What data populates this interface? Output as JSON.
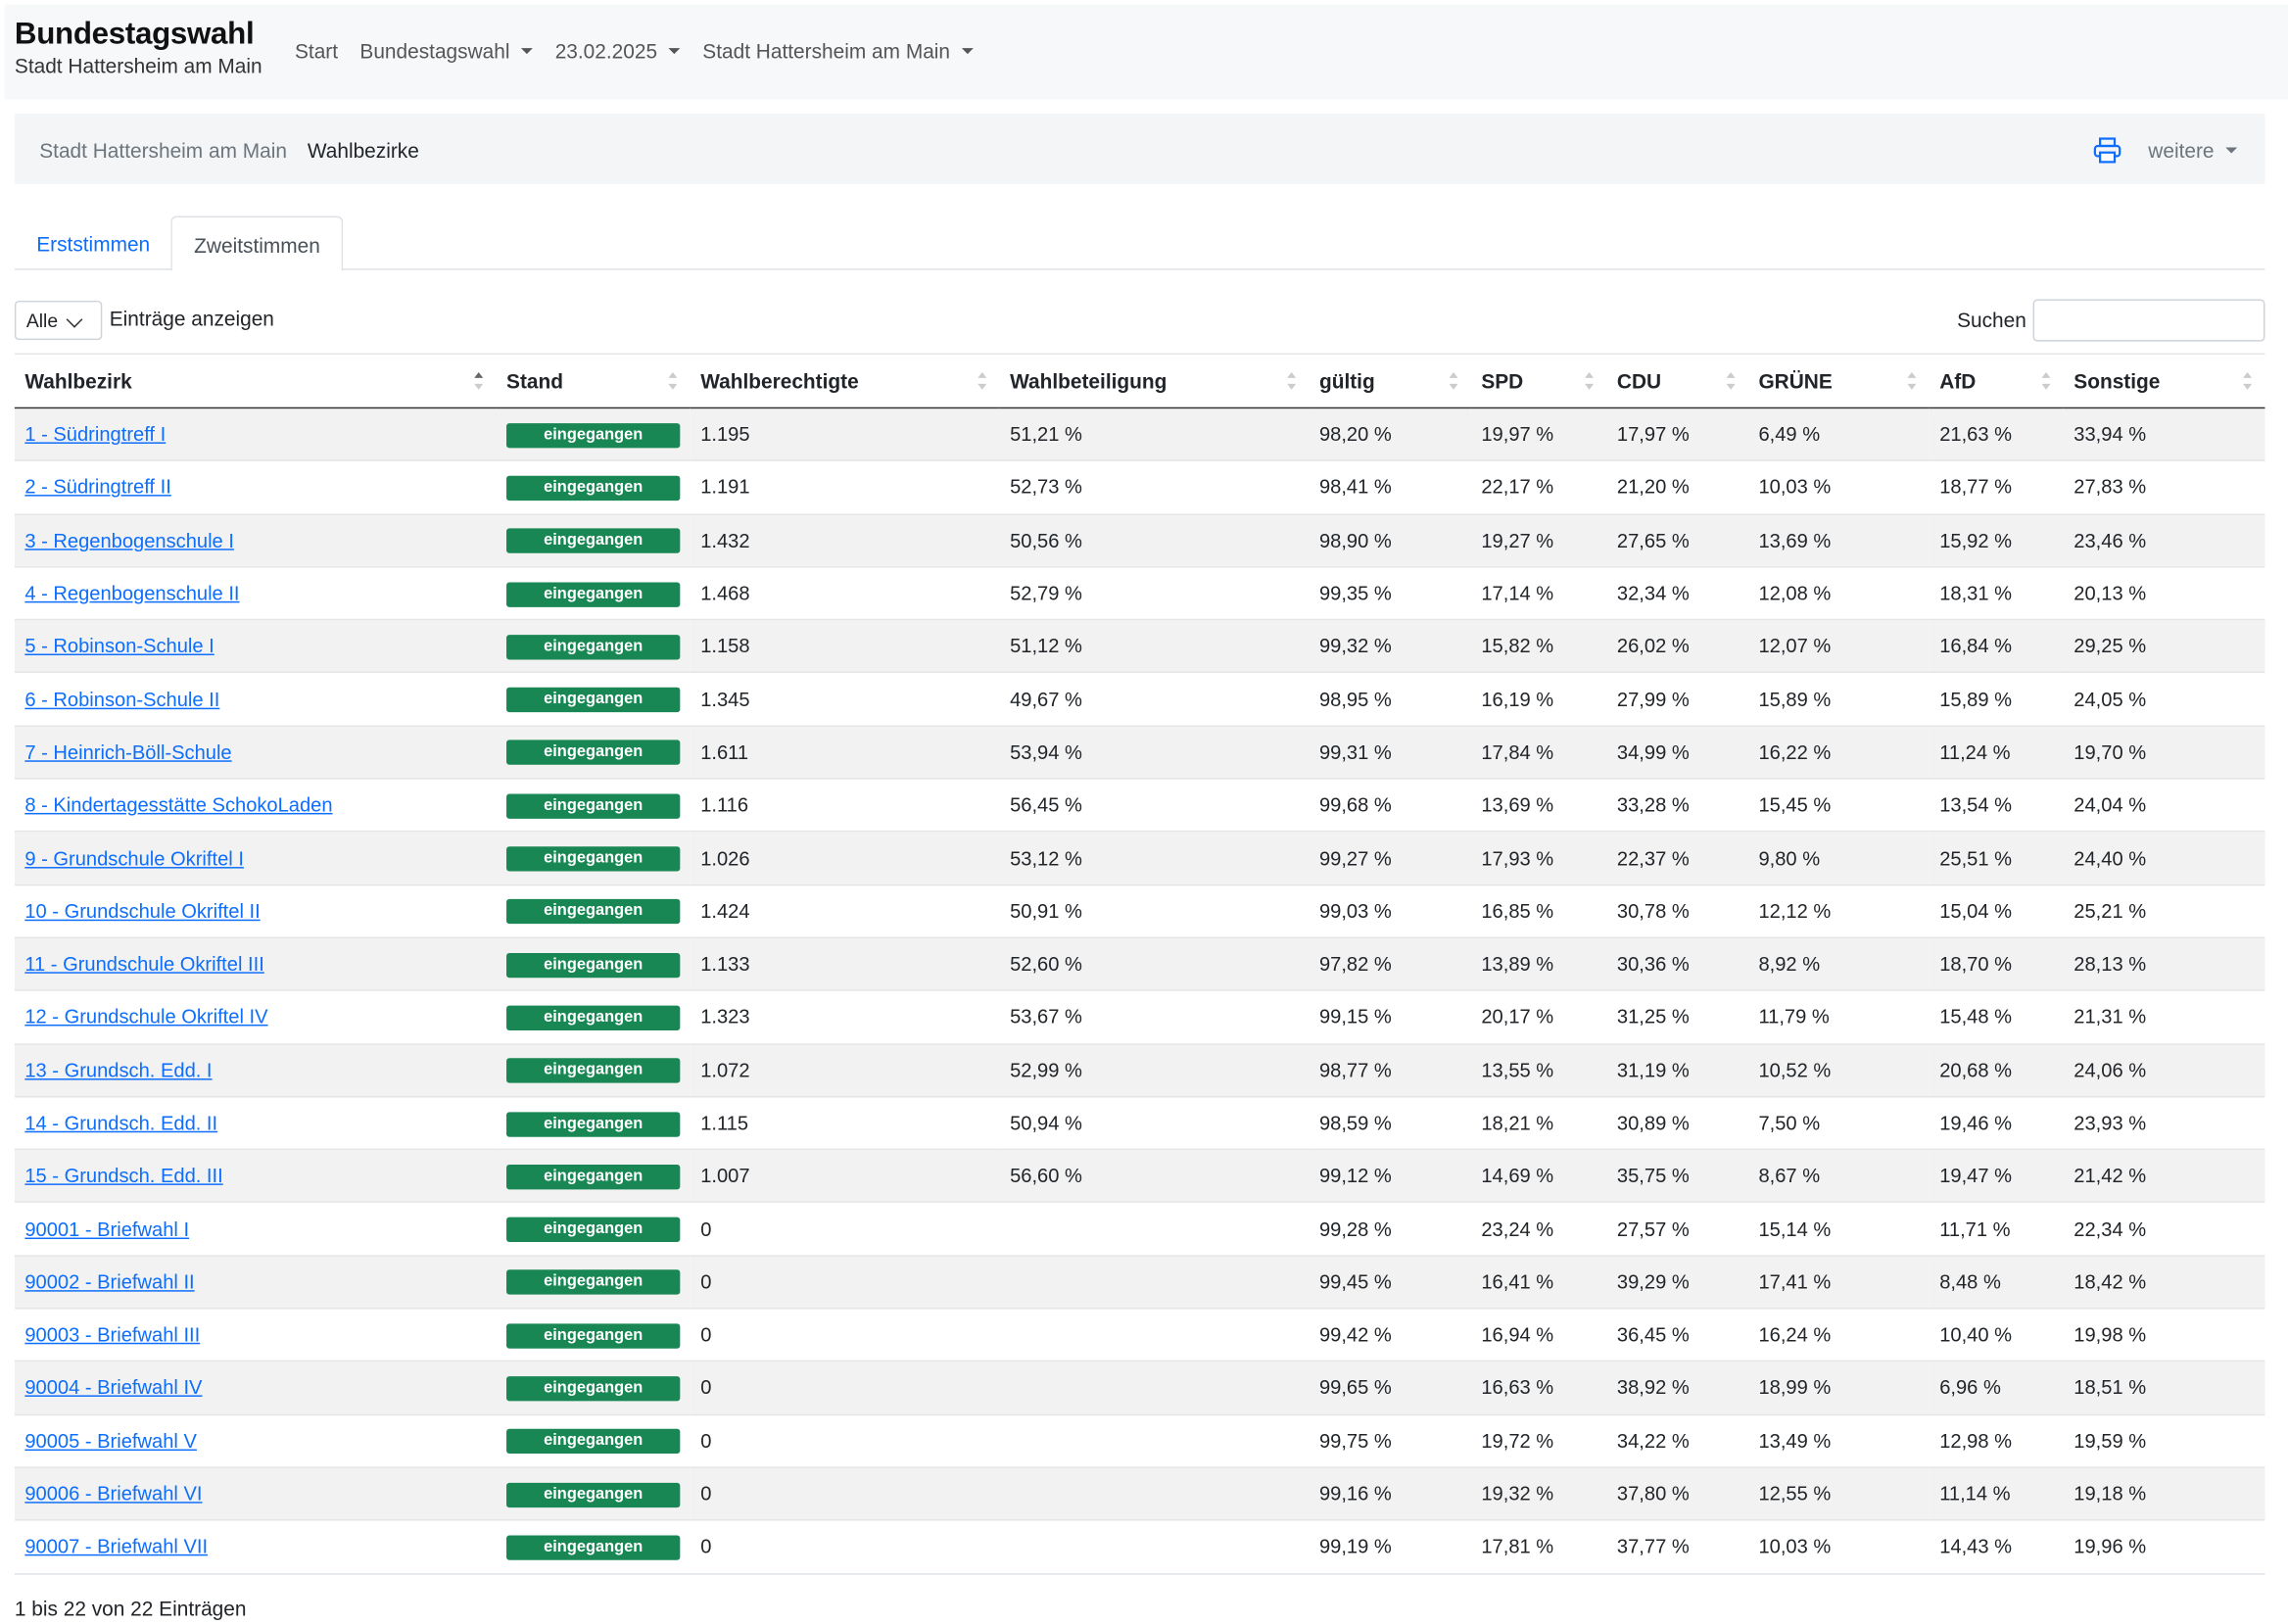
{
  "header": {
    "title": "Bundestagswahl",
    "subtitle": "Stadt Hattersheim am Main",
    "nav": [
      "Start",
      "Bundestagswahl",
      "23.02.2025",
      "Stadt Hattersheim am Main"
    ]
  },
  "breadcrumb": {
    "items": [
      "Stadt Hattersheim am Main",
      "Wahlbezirke"
    ],
    "more_label": "weitere",
    "print_icon": "printer-icon"
  },
  "tabs": [
    "Erststimmen",
    "Zweitstimmen"
  ],
  "active_tab": "Zweitstimmen",
  "controls": {
    "length_value": "Alle",
    "length_label": "Einträge anzeigen",
    "search_label": "Suchen",
    "search_value": ""
  },
  "table": {
    "columns": [
      "Wahlbezirk",
      "Stand",
      "Wahlberechtigte",
      "Wahlbeteiligung",
      "gültig",
      "SPD",
      "CDU",
      "GRÜNE",
      "AfD",
      "Sonstige"
    ],
    "status_color": "#198754",
    "rows": [
      [
        "1 - Südringtreff I",
        "eingegangen",
        "1.195",
        "51,21 %",
        "98,20 %",
        "19,97 %",
        "17,97 %",
        "6,49 %",
        "21,63 %",
        "33,94 %"
      ],
      [
        "2 - Südringtreff II",
        "eingegangen",
        "1.191",
        "52,73 %",
        "98,41 %",
        "22,17 %",
        "21,20 %",
        "10,03 %",
        "18,77 %",
        "27,83 %"
      ],
      [
        "3 - Regenbogenschule I",
        "eingegangen",
        "1.432",
        "50,56 %",
        "98,90 %",
        "19,27 %",
        "27,65 %",
        "13,69 %",
        "15,92 %",
        "23,46 %"
      ],
      [
        "4 - Regenbogenschule II",
        "eingegangen",
        "1.468",
        "52,79 %",
        "99,35 %",
        "17,14 %",
        "32,34 %",
        "12,08 %",
        "18,31 %",
        "20,13 %"
      ],
      [
        "5 - Robinson-Schule I",
        "eingegangen",
        "1.158",
        "51,12 %",
        "99,32 %",
        "15,82 %",
        "26,02 %",
        "12,07 %",
        "16,84 %",
        "29,25 %"
      ],
      [
        "6 - Robinson-Schule II",
        "eingegangen",
        "1.345",
        "49,67 %",
        "98,95 %",
        "16,19 %",
        "27,99 %",
        "15,89 %",
        "15,89 %",
        "24,05 %"
      ],
      [
        "7 - Heinrich-Böll-Schule",
        "eingegangen",
        "1.611",
        "53,94 %",
        "99,31 %",
        "17,84 %",
        "34,99 %",
        "16,22 %",
        "11,24 %",
        "19,70 %"
      ],
      [
        "8 - Kindertagesstätte SchokoLaden",
        "eingegangen",
        "1.116",
        "56,45 %",
        "99,68 %",
        "13,69 %",
        "33,28 %",
        "15,45 %",
        "13,54 %",
        "24,04 %"
      ],
      [
        "9 - Grundschule Okriftel I",
        "eingegangen",
        "1.026",
        "53,12 %",
        "99,27 %",
        "17,93 %",
        "22,37 %",
        "9,80 %",
        "25,51 %",
        "24,40 %"
      ],
      [
        "10 - Grundschule Okriftel II",
        "eingegangen",
        "1.424",
        "50,91 %",
        "99,03 %",
        "16,85 %",
        "30,78 %",
        "12,12 %",
        "15,04 %",
        "25,21 %"
      ],
      [
        "11 - Grundschule Okriftel III",
        "eingegangen",
        "1.133",
        "52,60 %",
        "97,82 %",
        "13,89 %",
        "30,36 %",
        "8,92 %",
        "18,70 %",
        "28,13 %"
      ],
      [
        "12 - Grundschule Okriftel IV",
        "eingegangen",
        "1.323",
        "53,67 %",
        "99,15 %",
        "20,17 %",
        "31,25 %",
        "11,79 %",
        "15,48 %",
        "21,31 %"
      ],
      [
        "13 - Grundsch. Edd. I",
        "eingegangen",
        "1.072",
        "52,99 %",
        "98,77 %",
        "13,55 %",
        "31,19 %",
        "10,52 %",
        "20,68 %",
        "24,06 %"
      ],
      [
        "14 - Grundsch. Edd. II",
        "eingegangen",
        "1.115",
        "50,94 %",
        "98,59 %",
        "18,21 %",
        "30,89 %",
        "7,50 %",
        "19,46 %",
        "23,93 %"
      ],
      [
        "15 - Grundsch. Edd. III",
        "eingegangen",
        "1.007",
        "56,60 %",
        "99,12 %",
        "14,69 %",
        "35,75 %",
        "8,67 %",
        "19,47 %",
        "21,42 %"
      ],
      [
        "90001 - Briefwahl I",
        "eingegangen",
        "0",
        "",
        "99,28 %",
        "23,24 %",
        "27,57 %",
        "15,14 %",
        "11,71 %",
        "22,34 %"
      ],
      [
        "90002 - Briefwahl II",
        "eingegangen",
        "0",
        "",
        "99,45 %",
        "16,41 %",
        "39,29 %",
        "17,41 %",
        "8,48 %",
        "18,42 %"
      ],
      [
        "90003 - Briefwahl III",
        "eingegangen",
        "0",
        "",
        "99,42 %",
        "16,94 %",
        "36,45 %",
        "16,24 %",
        "10,40 %",
        "19,98 %"
      ],
      [
        "90004 - Briefwahl IV",
        "eingegangen",
        "0",
        "",
        "99,65 %",
        "16,63 %",
        "38,92 %",
        "18,99 %",
        "6,96 %",
        "18,51 %"
      ],
      [
        "90005 - Briefwahl V",
        "eingegangen",
        "0",
        "",
        "99,75 %",
        "19,72 %",
        "34,22 %",
        "13,49 %",
        "12,98 %",
        "19,59 %"
      ],
      [
        "90006 - Briefwahl VI",
        "eingegangen",
        "0",
        "",
        "99,16 %",
        "19,32 %",
        "37,80 %",
        "12,55 %",
        "11,14 %",
        "19,18 %"
      ],
      [
        "90007 - Briefwahl VII",
        "eingegangen",
        "0",
        "",
        "99,19 %",
        "17,81 %",
        "37,77 %",
        "10,03 %",
        "14,43 %",
        "19,96 %"
      ]
    ]
  },
  "footer": {
    "info": "1 bis 22 von 22 Einträgen"
  }
}
